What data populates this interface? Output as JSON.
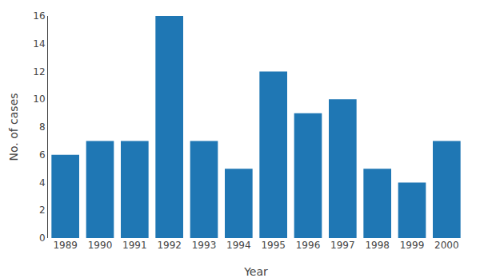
{
  "chart_data": {
    "type": "bar",
    "xlabel": "Year",
    "ylabel": "No. of cases",
    "categories": [
      "1989",
      "1990",
      "1991",
      "1992",
      "1993",
      "1994",
      "1995",
      "1996",
      "1997",
      "1998",
      "1999",
      "2000"
    ],
    "values": [
      6,
      7,
      7,
      16,
      7,
      5,
      12,
      9,
      10,
      5,
      4,
      7
    ],
    "ylim": [
      0,
      16
    ],
    "yticks": [
      0,
      2,
      4,
      6,
      8,
      10,
      12,
      14,
      16
    ],
    "grid": false
  }
}
